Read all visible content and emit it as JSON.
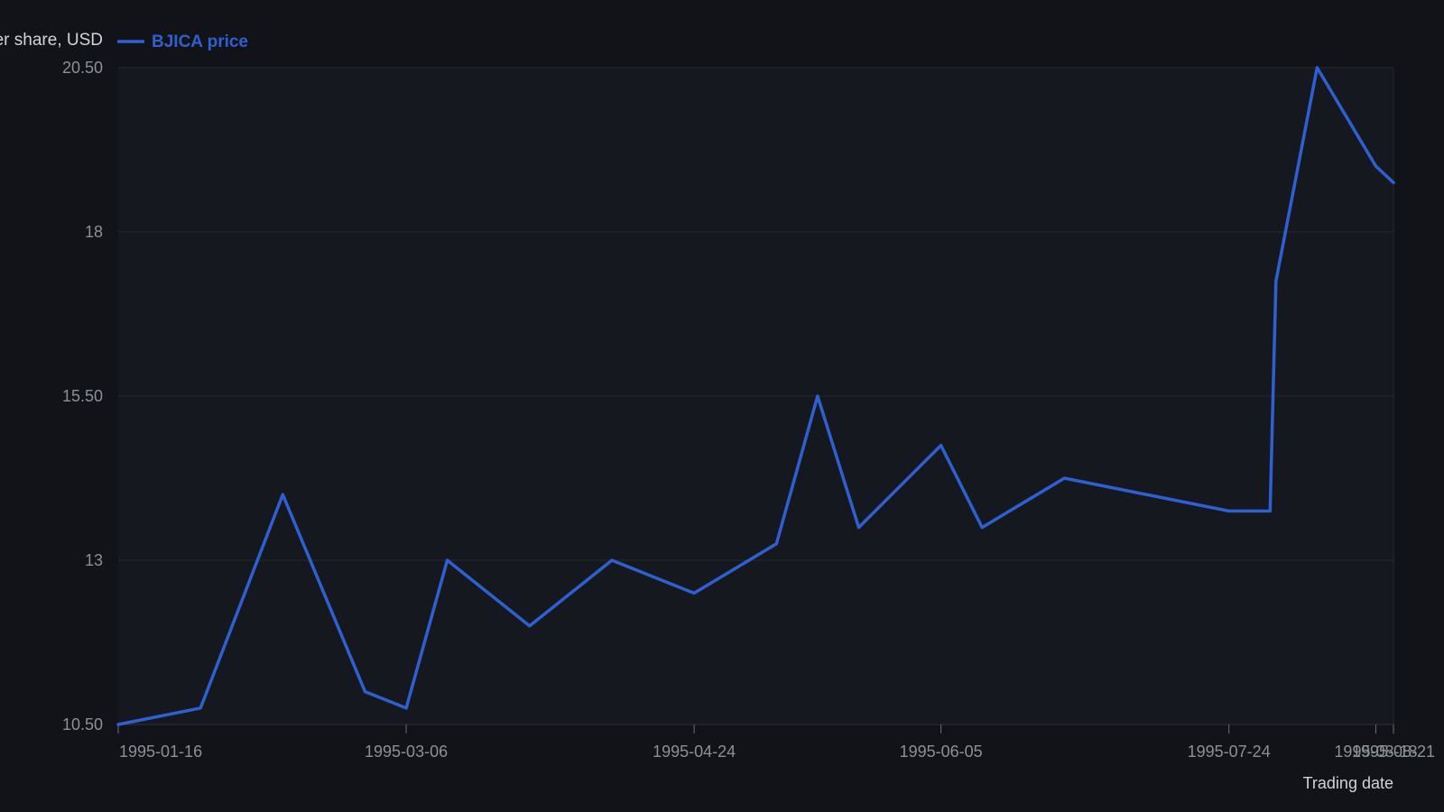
{
  "chart_data": {
    "type": "line",
    "title": "",
    "ylabel": "Price per share, USD",
    "xlabel": "Trading date",
    "ylim": [
      10.5,
      20.5
    ],
    "yticks": [
      10.5,
      13,
      15.5,
      18,
      20.5
    ],
    "ytick_labels": [
      "10.50",
      "13",
      "15.50",
      "18",
      "20.50"
    ],
    "xlim": [
      "1995-01-16",
      "1995-08-21"
    ],
    "xticks": [
      "1995-01-16",
      "1995-03-06",
      "1995-04-24",
      "1995-06-05",
      "1995-07-24",
      "1995-08-18",
      "1995-08-21"
    ],
    "xtick_labels": [
      "1995-01-16",
      "1995-03-06",
      "1995-04-24",
      "1995-06-05",
      "1995-07-24",
      "1995-08-18",
      "1995-08-21"
    ],
    "grid": true,
    "legend": "top-left",
    "series": [
      {
        "name": "BJICA price",
        "color": "#2f5fd0",
        "points": [
          {
            "x": "1995-01-16",
            "y": 10.5
          },
          {
            "x": "1995-01-30",
            "y": 10.75
          },
          {
            "x": "1995-02-13",
            "y": 14.0
          },
          {
            "x": "1995-02-27",
            "y": 11.0
          },
          {
            "x": "1995-03-06",
            "y": 10.75
          },
          {
            "x": "1995-03-13",
            "y": 13.0
          },
          {
            "x": "1995-03-27",
            "y": 12.0
          },
          {
            "x": "1995-04-10",
            "y": 13.0
          },
          {
            "x": "1995-04-24",
            "y": 12.5
          },
          {
            "x": "1995-05-08",
            "y": 13.25
          },
          {
            "x": "1995-05-15",
            "y": 15.5
          },
          {
            "x": "1995-05-22",
            "y": 13.5
          },
          {
            "x": "1995-06-05",
            "y": 14.75
          },
          {
            "x": "1995-06-12",
            "y": 13.5
          },
          {
            "x": "1995-06-26",
            "y": 14.25
          },
          {
            "x": "1995-07-24",
            "y": 13.75
          },
          {
            "x": "1995-07-31",
            "y": 13.75
          },
          {
            "x": "1995-08-01",
            "y": 17.25
          },
          {
            "x": "1995-08-08",
            "y": 20.5
          },
          {
            "x": "1995-08-18",
            "y": 19.0
          },
          {
            "x": "1995-08-21",
            "y": 18.75
          }
        ]
      }
    ]
  }
}
